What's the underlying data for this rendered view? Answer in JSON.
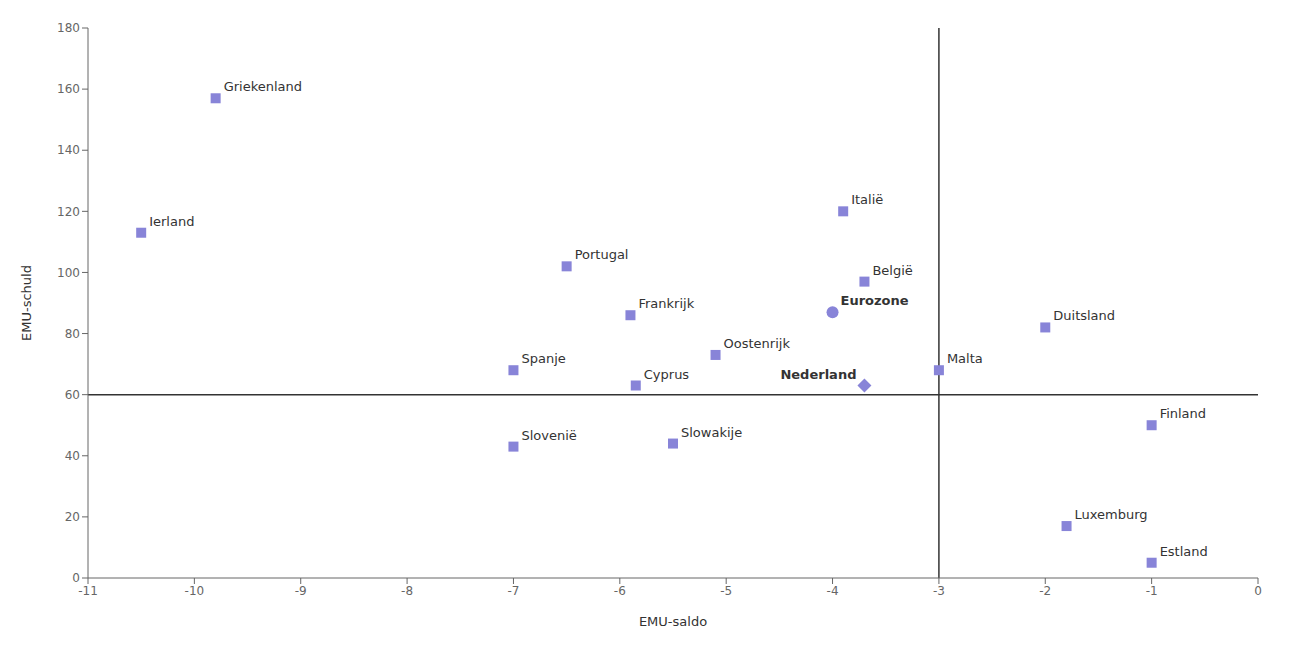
{
  "chart_data": {
    "type": "scatter",
    "xlabel": "EMU-saldo",
    "ylabel": "EMU-schuld",
    "xlim": [
      -11,
      0
    ],
    "ylim": [
      0,
      180
    ],
    "xticks": [
      -11,
      -10,
      -9,
      -8,
      -7,
      -6,
      -5,
      -4,
      -3,
      -2,
      -1,
      0
    ],
    "yticks": [
      0,
      20,
      40,
      60,
      80,
      100,
      120,
      140,
      160,
      180
    ],
    "hline": 60,
    "vline": -3,
    "grid": false,
    "series": [
      {
        "marker": "square",
        "points": [
          {
            "label": "Griekenland",
            "x": -9.8,
            "y": 157
          },
          {
            "label": "Ierland",
            "x": -10.5,
            "y": 113
          },
          {
            "label": "Portugal",
            "x": -6.5,
            "y": 102
          },
          {
            "label": "Frankrijk",
            "x": -5.9,
            "y": 86
          },
          {
            "label": "Spanje",
            "x": -7.0,
            "y": 68
          },
          {
            "label": "Italië",
            "x": -3.9,
            "y": 120
          },
          {
            "label": "België",
            "x": -3.7,
            "y": 97
          },
          {
            "label": "Oostenrijk",
            "x": -5.1,
            "y": 73
          },
          {
            "label": "Cyprus",
            "x": -5.85,
            "y": 63
          },
          {
            "label": "Malta",
            "x": -3.0,
            "y": 68
          },
          {
            "label": "Duitsland",
            "x": -2.0,
            "y": 82
          },
          {
            "label": "Slowakije",
            "x": -5.5,
            "y": 44
          },
          {
            "label": "Slovenië",
            "x": -7.0,
            "y": 43
          },
          {
            "label": "Finland",
            "x": -1.0,
            "y": 50
          },
          {
            "label": "Luxemburg",
            "x": -1.8,
            "y": 17
          },
          {
            "label": "Estland",
            "x": -1.0,
            "y": 5
          }
        ]
      },
      {
        "marker": "circle",
        "points": [
          {
            "label": "Eurozone",
            "x": -4.0,
            "y": 87
          }
        ]
      },
      {
        "marker": "diamond",
        "points": [
          {
            "label": "Nederland",
            "x": -3.7,
            "y": 63
          }
        ]
      }
    ]
  }
}
